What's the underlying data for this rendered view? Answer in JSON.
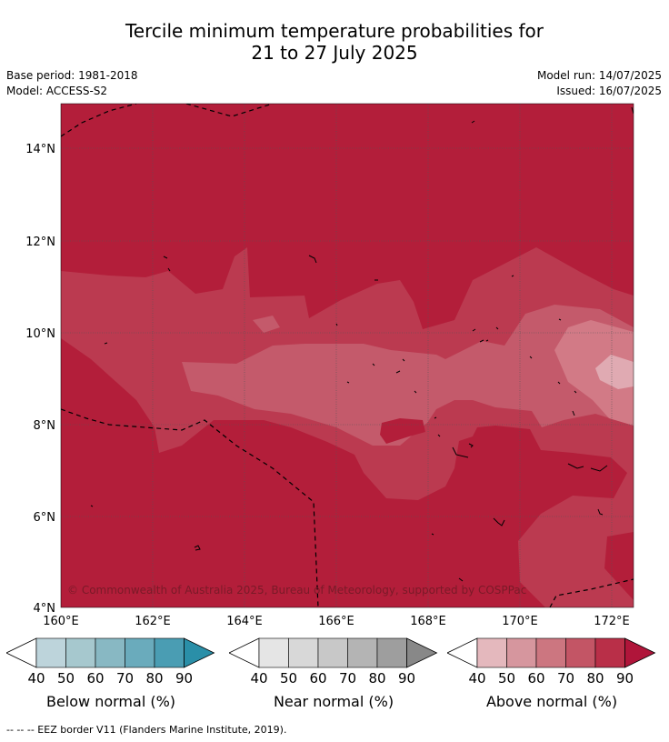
{
  "header": {
    "title_line1": "Tercile minimum temperature probabilities for",
    "title_line2": "21 to 27 July 2025",
    "base_period": "Base period: 1981-2018",
    "model": "Model: ACCESS-S2",
    "model_run": "Model run: 14/07/2025",
    "issued": "Issued: 16/07/2025"
  },
  "map": {
    "lat_labels": [
      "14°N",
      "12°N",
      "10°N",
      "8°N",
      "6°N",
      "4°N"
    ],
    "lon_labels": [
      "160°E",
      "162°E",
      "164°E",
      "166°E",
      "168°E",
      "170°E",
      "172°E"
    ],
    "copyright": "© Commonwealth of Australia 2025, Bureau of Meteorology, supported by COSPPac",
    "colors": {
      "above_90": "#b31e3a",
      "above_80": "#bb3a50",
      "above_70": "#c45a6b",
      "above_60": "#d27a86",
      "above_50": "#e0aab2"
    }
  },
  "legend": {
    "ticks": [
      "40",
      "50",
      "60",
      "70",
      "80",
      "90"
    ],
    "below": {
      "label": "Below normal (%)",
      "colors": [
        "#bdd4db",
        "#a6c8ce",
        "#88b8c3",
        "#6aabbc",
        "#4a9db3",
        "#2a8fa8"
      ]
    },
    "near": {
      "label": "Near normal (%)",
      "colors": [
        "#e5e5e5",
        "#d8d8d8",
        "#c8c8c8",
        "#b4b4b4",
        "#9e9e9e",
        "#888888"
      ]
    },
    "above": {
      "label": "Above normal (%)",
      "colors": [
        "#e4b8bd",
        "#d6969e",
        "#cc7680",
        "#c35565",
        "#b92f48",
        "#b0153a"
      ]
    }
  },
  "footnote": "--  --  -- EEZ border V11 (Flanders Marine Institute, 2019)."
}
